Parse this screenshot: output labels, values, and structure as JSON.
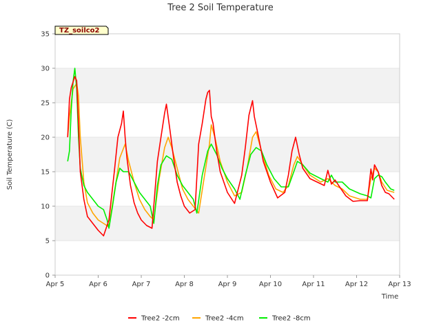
{
  "chart_data": {
    "type": "line",
    "title": "Tree 2 Soil Temperature",
    "xlabel": "Time",
    "ylabel": "Soil Temperature (C)",
    "ylim": [
      0,
      35
    ],
    "xlim": [
      "2024-04-05",
      "2024-04-13"
    ],
    "x_ticks": [
      "Apr 5",
      "Apr 6",
      "Apr 7",
      "Apr 8",
      "Apr 9",
      "Apr 10",
      "Apr 11",
      "Apr 12",
      "Apr 13"
    ],
    "y_ticks": [
      "0",
      "5",
      "10",
      "15",
      "20",
      "25",
      "30",
      "35"
    ],
    "y_tick_values": [
      0,
      5,
      10,
      15,
      20,
      25,
      30,
      35
    ],
    "badge": "TZ_soilco2",
    "grid": "horizontal-bands",
    "legend_position": "bottom",
    "series": [
      {
        "name": "Tree2 -2cm",
        "color": "#ff0000",
        "x": [
          "2024-04-05 07:00",
          "2024-04-05 08:00",
          "2024-04-05 09:00",
          "2024-04-05 10:00",
          "2024-04-05 11:00",
          "2024-04-05 12:00",
          "2024-04-05 13:00",
          "2024-04-05 14:00",
          "2024-04-05 16:00",
          "2024-04-05 18:00",
          "2024-04-05 21:00",
          "2024-04-06 00:00",
          "2024-04-06 03:00",
          "2024-04-06 06:00",
          "2024-04-06 09:00",
          "2024-04-06 11:00",
          "2024-04-06 13:00",
          "2024-04-06 14:00",
          "2024-04-06 15:00",
          "2024-04-06 16:00",
          "2024-04-06 18:00",
          "2024-04-06 20:00",
          "2024-04-06 22:00",
          "2024-04-07 00:00",
          "2024-04-07 03:00",
          "2024-04-07 06:00",
          "2024-04-07 09:00",
          "2024-04-07 11:00",
          "2024-04-07 13:00",
          "2024-04-07 14:00",
          "2024-04-07 16:00",
          "2024-04-07 18:00",
          "2024-04-07 20:00",
          "2024-04-07 22:00",
          "2024-04-08 00:00",
          "2024-04-08 03:00",
          "2024-04-08 06:00",
          "2024-04-08 08:00",
          "2024-04-08 10:00",
          "2024-04-08 12:00",
          "2024-04-08 13:00",
          "2024-04-08 14:00",
          "2024-04-08 15:00",
          "2024-04-08 16:00",
          "2024-04-08 18:00",
          "2024-04-08 20:00",
          "2024-04-09 00:00",
          "2024-04-09 04:00",
          "2024-04-09 08:00",
          "2024-04-09 10:00",
          "2024-04-09 12:00",
          "2024-04-09 14:00",
          "2024-04-09 15:00",
          "2024-04-09 17:00",
          "2024-04-09 20:00",
          "2024-04-10 00:00",
          "2024-04-10 04:00",
          "2024-04-10 08:00",
          "2024-04-10 10:00",
          "2024-04-10 12:00",
          "2024-04-10 14:00",
          "2024-04-10 16:00",
          "2024-04-10 18:00",
          "2024-04-10 22:00",
          "2024-04-11 02:00",
          "2024-04-11 06:00",
          "2024-04-11 08:00",
          "2024-04-11 10:00",
          "2024-04-11 12:00",
          "2024-04-11 14:00",
          "2024-04-11 18:00",
          "2024-04-11 22:00",
          "2024-04-12 02:00",
          "2024-04-12 06:00",
          "2024-04-12 07:00",
          "2024-04-12 08:00",
          "2024-04-12 09:00",
          "2024-04-12 10:00",
          "2024-04-12 12:00",
          "2024-04-12 14:00",
          "2024-04-12 16:00",
          "2024-04-12 18:00",
          "2024-04-12 21:00"
        ],
        "y": [
          20.0,
          25.5,
          27.2,
          28.0,
          28.8,
          28.2,
          22.0,
          15.0,
          11.0,
          8.5,
          7.5,
          6.5,
          5.7,
          8.0,
          15.0,
          20.0,
          22.0,
          23.8,
          20.0,
          17.0,
          13.0,
          10.5,
          9.0,
          8.0,
          7.2,
          6.8,
          16.5,
          20.0,
          23.5,
          24.8,
          21.0,
          17.0,
          13.5,
          11.5,
          10.0,
          9.0,
          9.5,
          19.0,
          22.0,
          25.5,
          26.5,
          26.8,
          23.0,
          22.0,
          18.0,
          15.0,
          12.0,
          10.4,
          14.5,
          18.5,
          23.2,
          25.3,
          23.0,
          20.5,
          16.5,
          13.5,
          11.2,
          12.0,
          14.5,
          18.0,
          20.0,
          17.5,
          15.5,
          14.0,
          13.5,
          13.0,
          15.2,
          13.2,
          13.8,
          13.0,
          11.5,
          10.7,
          10.8,
          10.8,
          13.0,
          15.4,
          13.8,
          16.0,
          15.0,
          13.0,
          12.0,
          11.8,
          11.0
        ]
      },
      {
        "name": "Tree2 -4cm",
        "color": "#ffa500",
        "x": [
          "2024-04-05 07:00",
          "2024-04-05 08:00",
          "2024-04-05 10:00",
          "2024-04-05 12:00",
          "2024-04-05 13:00",
          "2024-04-05 14:00",
          "2024-04-05 16:00",
          "2024-04-05 18:00",
          "2024-04-05 21:00",
          "2024-04-06 00:00",
          "2024-04-06 03:00",
          "2024-04-06 06:00",
          "2024-04-06 09:00",
          "2024-04-06 12:00",
          "2024-04-06 15:00",
          "2024-04-06 17:00",
          "2024-04-06 20:00",
          "2024-04-06 23:00",
          "2024-04-07 02:00",
          "2024-04-07 05:00",
          "2024-04-07 07:00",
          "2024-04-07 10:00",
          "2024-04-07 13:00",
          "2024-04-07 15:00",
          "2024-04-07 17:00",
          "2024-04-07 20:00",
          "2024-04-07 23:00",
          "2024-04-08 02:00",
          "2024-04-08 05:00",
          "2024-04-08 08:00",
          "2024-04-08 11:00",
          "2024-04-08 14:00",
          "2024-04-08 15:00",
          "2024-04-08 17:00",
          "2024-04-08 20:00",
          "2024-04-09 00:00",
          "2024-04-09 04:00",
          "2024-04-09 08:00",
          "2024-04-09 11:00",
          "2024-04-09 14:00",
          "2024-04-09 16:00",
          "2024-04-09 19:00",
          "2024-04-09 23:00",
          "2024-04-10 03:00",
          "2024-04-10 07:00",
          "2024-04-10 10:00",
          "2024-04-10 13:00",
          "2024-04-10 15:00",
          "2024-04-10 18:00",
          "2024-04-10 22:00",
          "2024-04-11 04:00",
          "2024-04-11 08:00",
          "2024-04-11 10:00",
          "2024-04-11 12:00",
          "2024-04-11 16:00",
          "2024-04-11 20:00",
          "2024-04-12 02:00",
          "2024-04-12 06:00",
          "2024-04-12 08:00",
          "2024-04-12 10:00",
          "2024-04-12 12:00",
          "2024-04-12 14:00",
          "2024-04-12 17:00",
          "2024-04-12 21:00"
        ],
        "y": [
          20.0,
          23.0,
          27.0,
          27.8,
          26.0,
          20.0,
          13.5,
          10.5,
          9.0,
          8.0,
          7.5,
          7.0,
          12.0,
          17.0,
          19.0,
          16.5,
          13.5,
          11.0,
          9.5,
          8.5,
          8.0,
          14.0,
          18.5,
          20.0,
          18.5,
          15.5,
          12.5,
          11.0,
          10.0,
          9.0,
          14.0,
          19.0,
          21.8,
          20.0,
          16.5,
          13.5,
          11.5,
          12.0,
          15.5,
          20.0,
          20.8,
          18.0,
          14.5,
          12.5,
          12.0,
          13.0,
          16.0,
          17.2,
          16.0,
          14.5,
          13.5,
          14.0,
          13.5,
          13.0,
          12.5,
          11.5,
          11.0,
          11.0,
          14.0,
          15.5,
          15.0,
          13.5,
          12.3,
          12.0
        ]
      },
      {
        "name": "Tree2 -8cm",
        "color": "#00ee00",
        "x": [
          "2024-04-05 07:00",
          "2024-04-05 08:00",
          "2024-04-05 09:00",
          "2024-04-05 10:00",
          "2024-04-05 11:00",
          "2024-04-05 12:00",
          "2024-04-05 13:00",
          "2024-04-05 14:00",
          "2024-04-05 16:00",
          "2024-04-05 18:00",
          "2024-04-05 21:00",
          "2024-04-06 00:00",
          "2024-04-06 03:00",
          "2024-04-06 05:00",
          "2024-04-06 06:00",
          "2024-04-06 08:00",
          "2024-04-06 10:00",
          "2024-04-06 12:00",
          "2024-04-06 14:00",
          "2024-04-06 17:00",
          "2024-04-06 20:00",
          "2024-04-06 23:00",
          "2024-04-07 02:00",
          "2024-04-07 05:00",
          "2024-04-07 07:00",
          "2024-04-07 09:00",
          "2024-04-07 11:00",
          "2024-04-07 14:00",
          "2024-04-07 17:00",
          "2024-04-07 20:00",
          "2024-04-07 23:00",
          "2024-04-08 02:00",
          "2024-04-08 05:00",
          "2024-04-08 07:00",
          "2024-04-08 10:00",
          "2024-04-08 13:00",
          "2024-04-08 15:00",
          "2024-04-08 18:00",
          "2024-04-08 21:00",
          "2024-04-09 00:00",
          "2024-04-09 04:00",
          "2024-04-09 07:00",
          "2024-04-09 10:00",
          "2024-04-09 13:00",
          "2024-04-09 16:00",
          "2024-04-09 19:00",
          "2024-04-09 22:00",
          "2024-04-10 02:00",
          "2024-04-10 06:00",
          "2024-04-10 10:00",
          "2024-04-10 13:00",
          "2024-04-10 15:00",
          "2024-04-10 18:00",
          "2024-04-10 22:00",
          "2024-04-11 04:00",
          "2024-04-11 08:00",
          "2024-04-11 10:00",
          "2024-04-11 12:00",
          "2024-04-11 16:00",
          "2024-04-11 20:00",
          "2024-04-12 02:00",
          "2024-04-12 06:00",
          "2024-04-12 08:00",
          "2024-04-12 10:00",
          "2024-04-12 12:00",
          "2024-04-12 14:00",
          "2024-04-12 16:00",
          "2024-04-12 19:00",
          "2024-04-12 21:00"
        ],
        "y": [
          16.5,
          18.0,
          24.0,
          28.0,
          30.0,
          27.0,
          20.0,
          15.5,
          13.0,
          12.0,
          11.0,
          10.0,
          9.5,
          8.0,
          6.8,
          10.0,
          13.5,
          15.5,
          15.0,
          15.0,
          13.5,
          12.0,
          11.0,
          10.0,
          7.5,
          13.0,
          16.0,
          17.3,
          16.8,
          14.5,
          13.0,
          12.0,
          11.0,
          9.0,
          14.5,
          18.0,
          19.0,
          17.5,
          15.5,
          14.0,
          12.5,
          11.0,
          14.5,
          17.5,
          18.5,
          18.0,
          16.0,
          14.0,
          12.8,
          12.8,
          15.0,
          16.5,
          16.0,
          14.8,
          14.0,
          13.5,
          14.5,
          13.5,
          13.5,
          12.5,
          11.8,
          11.5,
          11.2,
          14.0,
          14.5,
          14.3,
          13.5,
          12.5,
          12.3
        ]
      }
    ]
  }
}
